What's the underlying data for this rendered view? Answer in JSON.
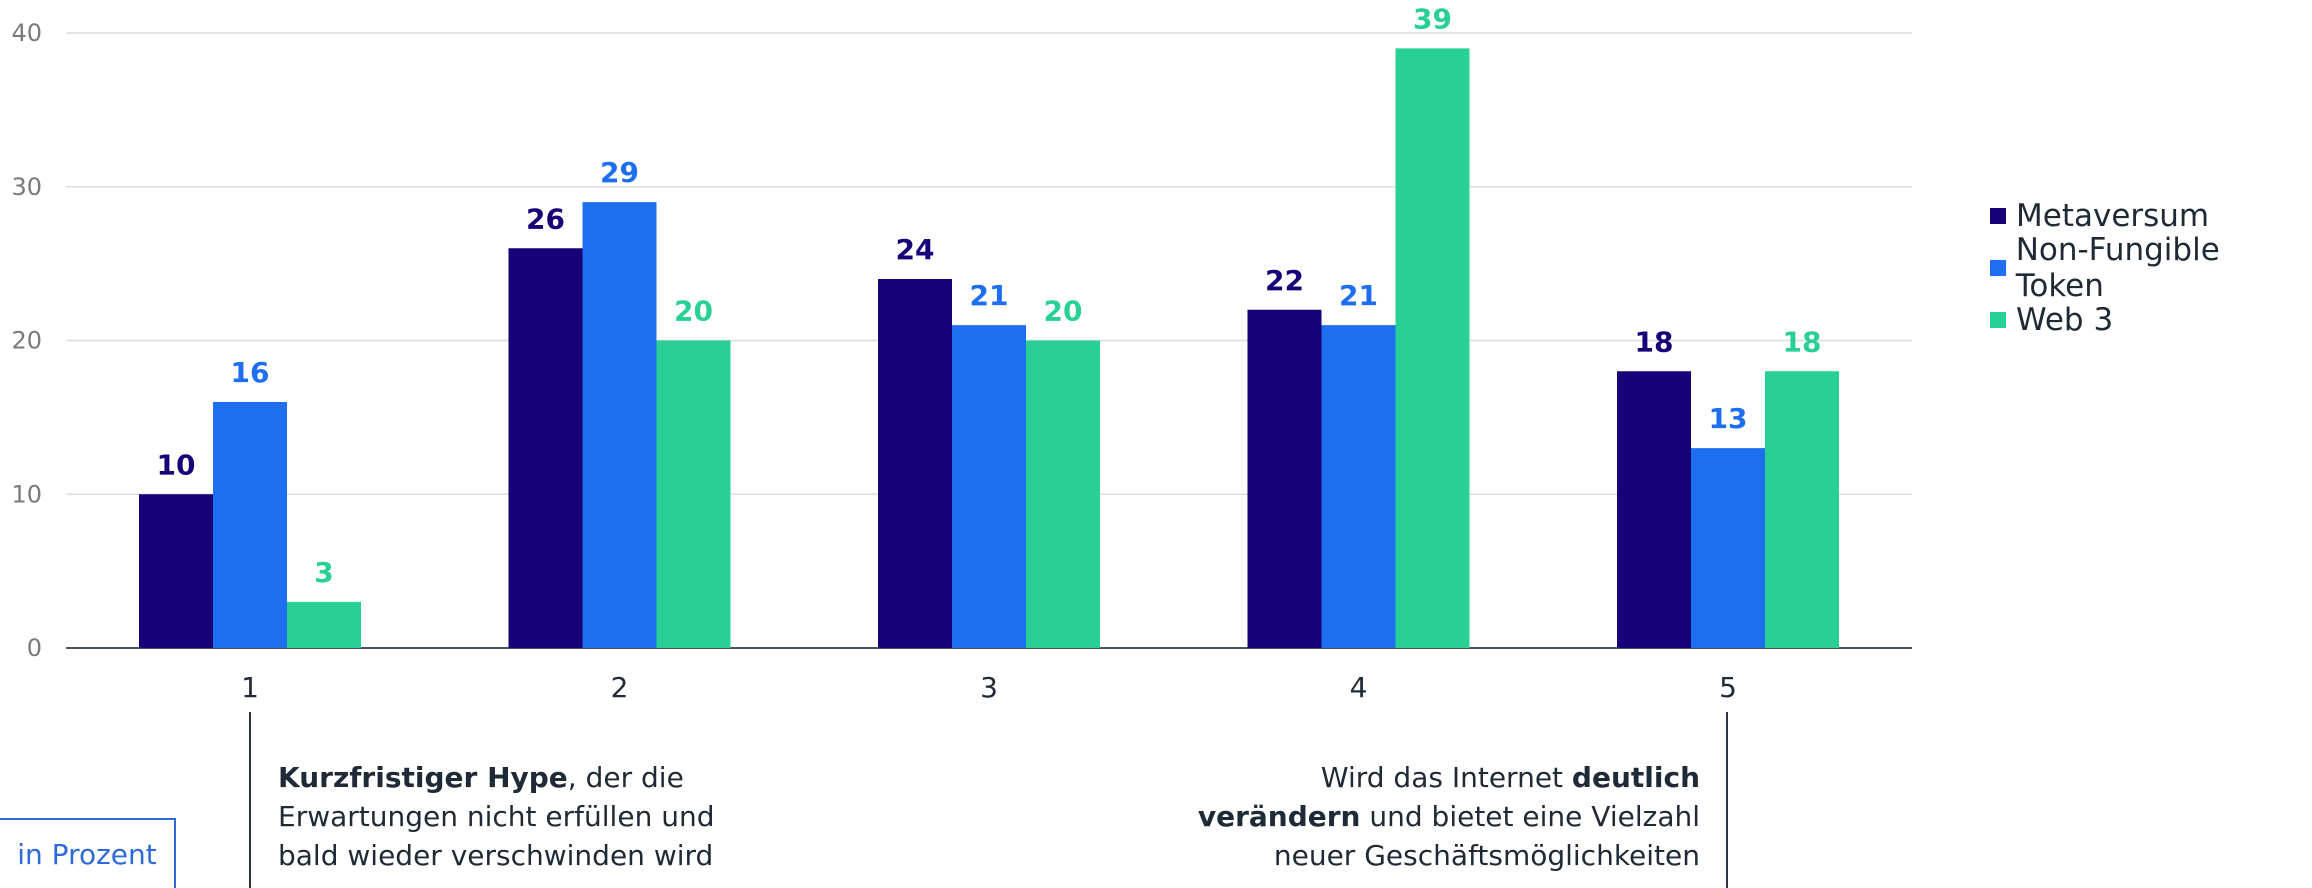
{
  "chart_data": {
    "type": "bar",
    "categories": [
      "1",
      "2",
      "3",
      "4",
      "5"
    ],
    "series": [
      {
        "name": "Metaversum",
        "values": [
          10,
          26,
          24,
          22,
          18
        ]
      },
      {
        "name": "Non-Fungible Token",
        "values": [
          16,
          29,
          21,
          21,
          13
        ]
      },
      {
        "name": "Web 3",
        "values": [
          3,
          20,
          20,
          39,
          18
        ]
      }
    ],
    "yticks": [
      0,
      10,
      20,
      30,
      40
    ],
    "ylim": [
      0,
      40
    ],
    "grid": true,
    "legend_position": "right",
    "colors": [
      "#170078",
      "#1e6ef0",
      "#28d094"
    ]
  },
  "unit_label": "in Prozent",
  "notes": {
    "left": {
      "bold": "Kurzfristiger Hype",
      "rest_line1": ", der die",
      "line2": "Erwartungen nicht erfüllen und",
      "line3": "bald wieder verschwinden wird"
    },
    "right": {
      "line1_pre": "Wird das Internet ",
      "line1_bold": "deutlich",
      "line2_bold": "verändern",
      "line2_rest": " und bietet eine Vielzahl",
      "line3": "neuer Geschäftsmöglichkeiten"
    }
  }
}
